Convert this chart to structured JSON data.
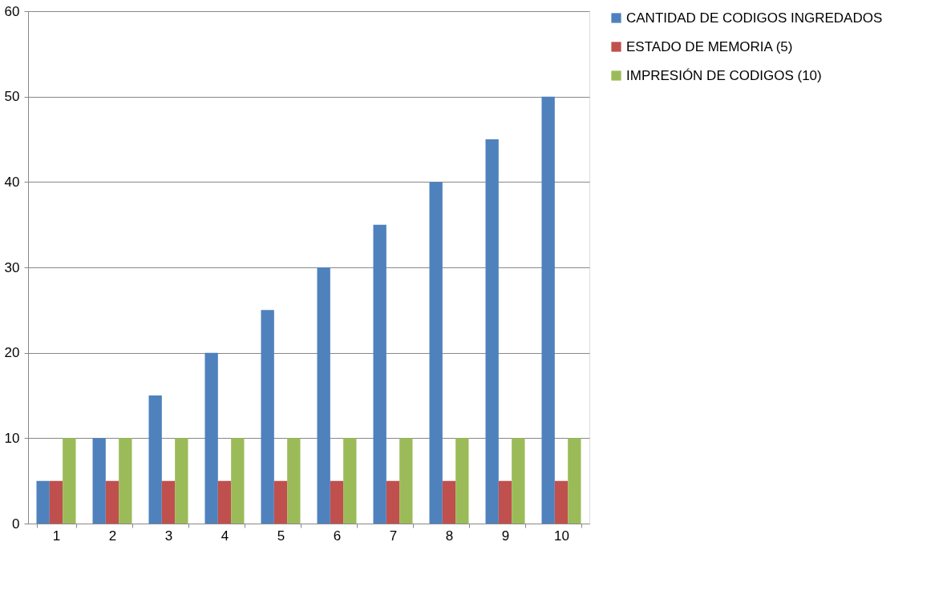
{
  "chart_data": {
    "type": "bar",
    "categories": [
      "1",
      "2",
      "3",
      "4",
      "5",
      "6",
      "7",
      "8",
      "9",
      "10"
    ],
    "series": [
      {
        "name": "CANTIDAD DE CODIGOS INGREDADOS",
        "color": "#4f81bd",
        "values": [
          5,
          10,
          15,
          20,
          25,
          30,
          35,
          40,
          45,
          50
        ]
      },
      {
        "name": "ESTADO DE MEMORIA  (5)",
        "color": "#c0504d",
        "values": [
          5,
          5,
          5,
          5,
          5,
          5,
          5,
          5,
          5,
          5
        ]
      },
      {
        "name": "IMPRESIÓN DE CODIGOS (10)",
        "color": "#9bbb59",
        "values": [
          10,
          10,
          10,
          10,
          10,
          10,
          10,
          10,
          10,
          10
        ]
      }
    ],
    "ylim": [
      0,
      60
    ],
    "yticks": [
      0,
      10,
      20,
      30,
      40,
      50,
      60
    ],
    "grid": "y",
    "legend": "right"
  }
}
